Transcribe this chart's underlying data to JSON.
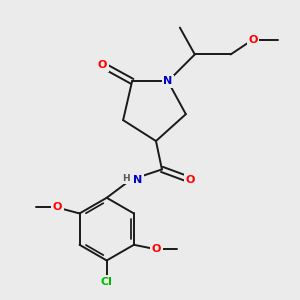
{
  "bg_color": "#ebebeb",
  "bond_color": "#1a1a1a",
  "bond_width": 1.4,
  "atom_colors": {
    "O": "#ff0000",
    "N": "#0000cc",
    "Cl": "#00bb00",
    "C": "#1a1a1a",
    "H": "#555555"
  },
  "figsize": [
    3.0,
    3.0
  ],
  "dpi": 100,
  "xlim": [
    0,
    10
  ],
  "ylim": [
    0,
    10
  ]
}
